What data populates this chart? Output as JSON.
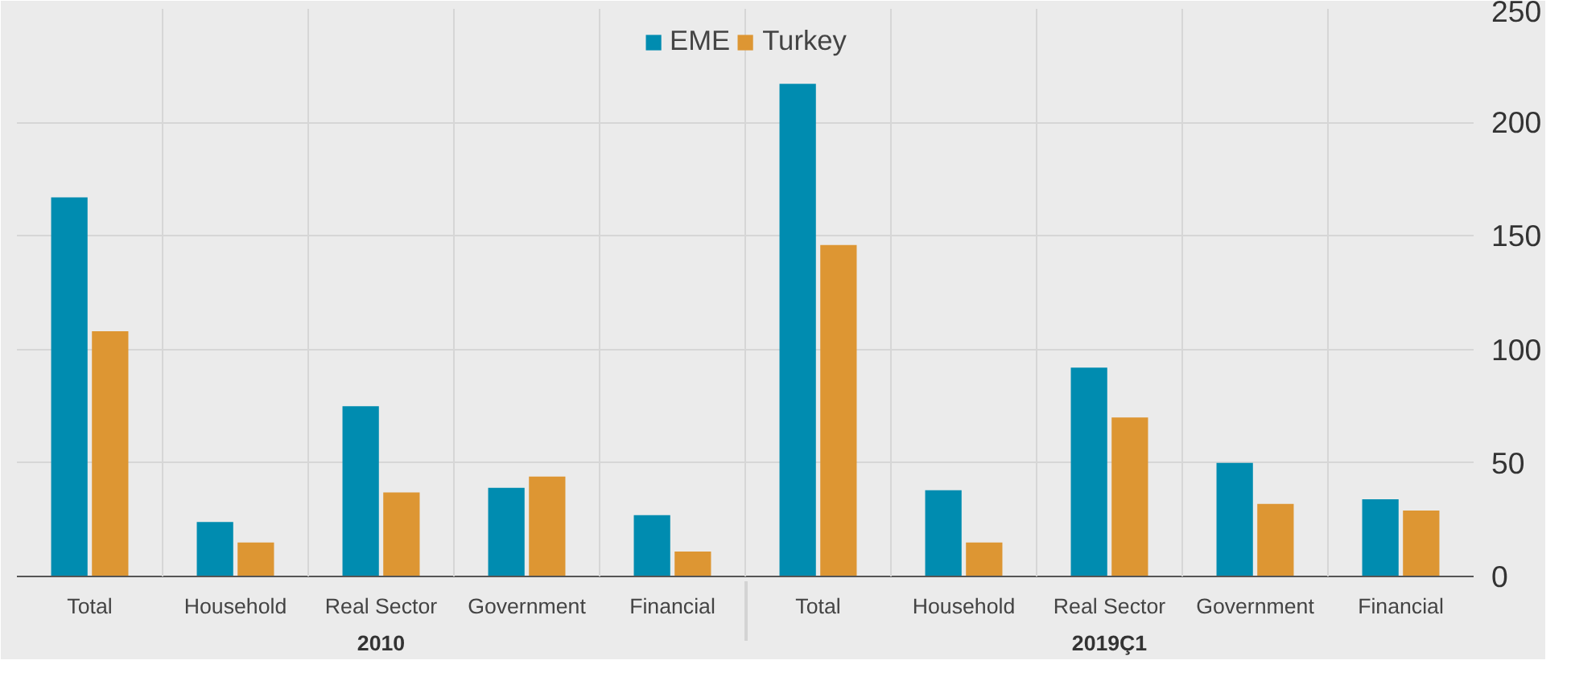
{
  "chart_data": {
    "type": "bar",
    "categories": [
      "Total",
      "Household",
      "Real Sector",
      "Government",
      "Financial",
      "Total",
      "Household",
      "Real Sector",
      "Government",
      "Financial"
    ],
    "series": [
      {
        "name": "EME",
        "color": "#008cb0",
        "values": [
          167,
          24,
          75,
          39,
          27,
          217,
          38,
          92,
          50,
          34
        ]
      },
      {
        "name": "Turkey",
        "color": "#dd9633",
        "values": [
          108,
          15,
          37,
          44,
          11,
          146,
          15,
          70,
          32,
          29
        ]
      }
    ],
    "ylim": [
      0,
      250
    ],
    "yticks": [
      0,
      50,
      100,
      150,
      200,
      250
    ],
    "grid": true,
    "legend": "top",
    "annotations": [
      "2010",
      "2019Ç1"
    ]
  }
}
